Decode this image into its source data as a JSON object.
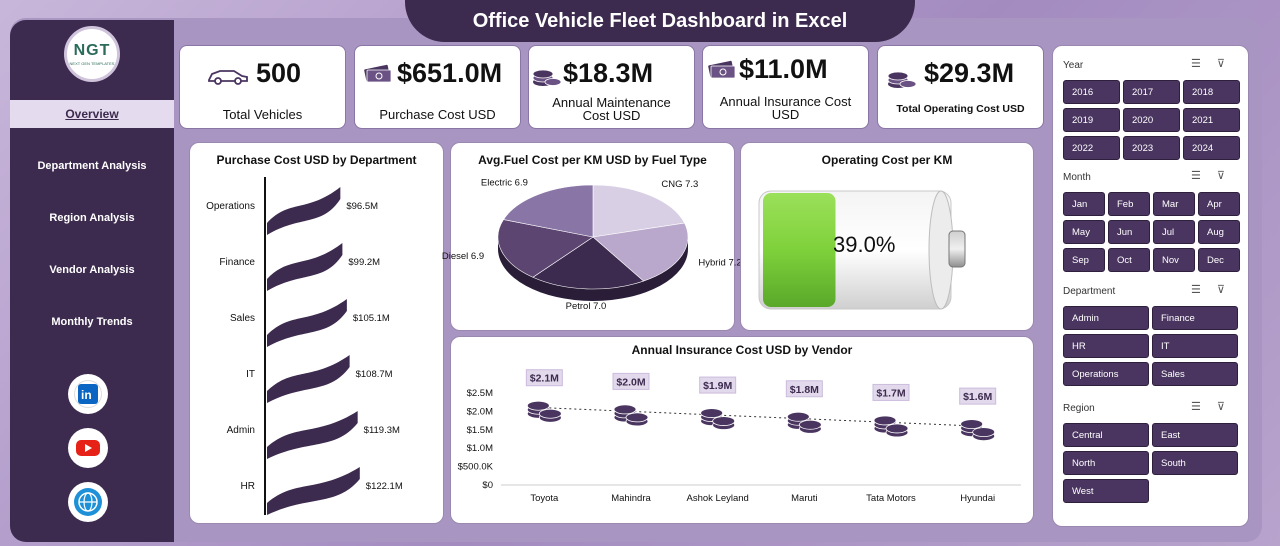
{
  "title": "Office Vehicle Fleet Dashboard in Excel",
  "logo": {
    "main": "NGT",
    "sub": "NEXT GEN TEMPLATES"
  },
  "nav": [
    {
      "label": "Overview",
      "active": true
    },
    {
      "label": "Department Analysis"
    },
    {
      "label": "Region Analysis"
    },
    {
      "label": "Vendor Analysis"
    },
    {
      "label": "Monthly Trends"
    }
  ],
  "social": [
    "linkedin-icon",
    "youtube-icon",
    "globe-icon"
  ],
  "kpis": [
    {
      "value": "500",
      "label": "Total Vehicles",
      "icon": "car-icon"
    },
    {
      "value": "$651.0M",
      "label": "Purchase Cost USD",
      "icon": "cash-icon"
    },
    {
      "value": "$18.3M",
      "label": "Annual Maintenance Cost USD",
      "icon": "coins-icon"
    },
    {
      "value": "$11.0M",
      "label": "Annual Insurance Cost USD",
      "icon": "cash-icon"
    },
    {
      "value": "$29.3M",
      "label": "Total Operating Cost USD",
      "icon": "coins-icon"
    }
  ],
  "colors": {
    "accent": "#3d2b4f",
    "button": "#4a3560",
    "battery": "#7fd13b"
  },
  "chart_data": [
    {
      "type": "bar",
      "title": "Purchase Cost USD by Department",
      "categories": [
        "Operations",
        "Finance",
        "Sales",
        "IT",
        "Admin",
        "HR"
      ],
      "values": [
        96.5,
        99.2,
        105.1,
        108.7,
        119.3,
        122.1
      ],
      "data_labels": [
        "$96.5M",
        "$99.2M",
        "$105.1M",
        "$108.7M",
        "$119.3M",
        "$122.1M"
      ]
    },
    {
      "type": "pie",
      "title": "Avg.Fuel Cost per KM USD by Fuel Type",
      "categories": [
        "CNG",
        "Hybrid",
        "Petrol",
        "Diesel",
        "Electric"
      ],
      "values": [
        7.3,
        7.2,
        7.0,
        6.9,
        6.9
      ],
      "data_labels": [
        "CNG 7.3",
        "Hybrid 7.2",
        "Petrol 7.0",
        "Diesel 6.9",
        "Electric 6.9"
      ],
      "colors": [
        "#d9cfe4",
        "#b9a8cc",
        "#3d2b4f",
        "#5c4570",
        "#8a76a6"
      ]
    },
    {
      "type": "bar",
      "title": "Operating Cost per KM",
      "values": [
        39.0
      ],
      "data_labels": [
        "39.0%"
      ]
    },
    {
      "type": "scatter",
      "title": "Annual Insurance Cost USD by Vendor",
      "categories": [
        "Toyota",
        "Mahindra",
        "Ashok Leyland",
        "Maruti",
        "Tata Motors",
        "Hyundai"
      ],
      "values": [
        2.1,
        2.0,
        1.9,
        1.8,
        1.7,
        1.6
      ],
      "data_labels": [
        "$2.1M",
        "$2.0M",
        "$1.9M",
        "$1.8M",
        "$1.7M",
        "$1.6M"
      ],
      "y_ticks": [
        "$0",
        "$500.0K",
        "$1.0M",
        "$1.5M",
        "$2.0M",
        "$2.5M"
      ],
      "ylim": [
        0,
        2.5
      ]
    }
  ],
  "slicers": {
    "year": {
      "label": "Year",
      "items": [
        "2016",
        "2017",
        "2018",
        "2019",
        "2020",
        "2021",
        "2022",
        "2023",
        "2024"
      ]
    },
    "month": {
      "label": "Month",
      "items": [
        "Jan",
        "Feb",
        "Mar",
        "Apr",
        "May",
        "Jun",
        "Jul",
        "Aug",
        "Sep",
        "Oct",
        "Nov",
        "Dec"
      ]
    },
    "department": {
      "label": "Department",
      "items": [
        "Admin",
        "Finance",
        "HR",
        "IT",
        "Operations",
        "Sales"
      ]
    },
    "region": {
      "label": "Region",
      "items": [
        "Central",
        "East",
        "North",
        "South",
        "West"
      ]
    }
  }
}
